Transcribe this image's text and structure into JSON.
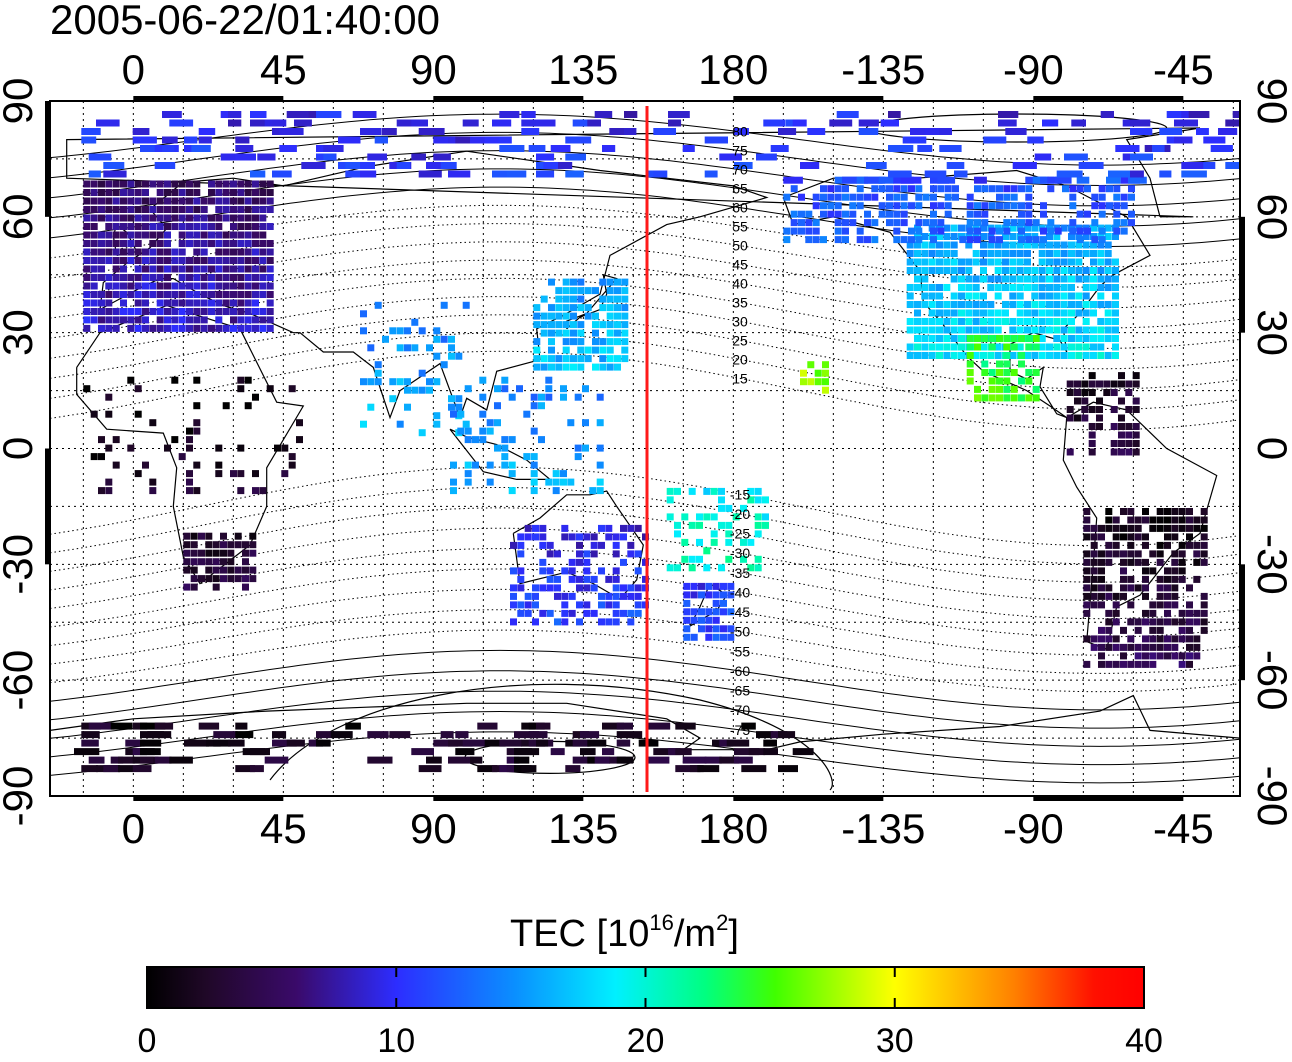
{
  "timestamp": "2005-06-22/01:40:00",
  "top_lon_labels": [
    "0",
    "45",
    "90",
    "135",
    "180",
    "-135",
    "-90",
    "-45"
  ],
  "bottom_lon_labels": [
    "0",
    "45",
    "90",
    "135",
    "180",
    "-135",
    "-90",
    "-45"
  ],
  "left_lat_labels": [
    "90",
    "60",
    "30",
    "0",
    "-30",
    "-60",
    "-90"
  ],
  "right_lat_labels": [
    "90",
    "60",
    "30",
    "0",
    "-30",
    "-60",
    "-90"
  ],
  "contour_labels": [
    "80",
    "75",
    "70",
    "65",
    "60",
    "55",
    "50",
    "45",
    "40",
    "35",
    "30",
    "25",
    "20",
    "15",
    "-15",
    "-20",
    "-25",
    "-30",
    "-35",
    "-40",
    "-45",
    "-50",
    "-55",
    "-60",
    "-65",
    "-70",
    "-75"
  ],
  "colorbar": {
    "title_prefix": "TEC  [10",
    "title_sup1": "16",
    "title_mid": "/m",
    "title_sup2": "2",
    "title_suffix": "]",
    "tick_labels": [
      "0",
      "10",
      "20",
      "30",
      "40"
    ],
    "min": 0,
    "max": 40
  },
  "colors": {
    "red_meridian": "#ff1a1a",
    "frame": "#000000"
  },
  "tec_regions": [
    {
      "name": "europe",
      "lon": [
        -15,
        40
      ],
      "lat": [
        32,
        70
      ],
      "value": 7,
      "density": 0.95
    },
    {
      "name": "north-america",
      "lon": [
        -128,
        -65
      ],
      "lat": [
        25,
        60
      ],
      "value": 17,
      "density": 0.9
    },
    {
      "name": "canada-alaska",
      "lon": [
        -165,
        -60
      ],
      "lat": [
        55,
        72
      ],
      "value": 12,
      "density": 0.6
    },
    {
      "name": "mexico",
      "lon": [
        -110,
        -90
      ],
      "lat": [
        14,
        30
      ],
      "value": 24,
      "density": 0.7
    },
    {
      "name": "japan",
      "lon": [
        120,
        148
      ],
      "lat": [
        22,
        45
      ],
      "value": 16,
      "density": 0.85
    },
    {
      "name": "africa-north",
      "lon": [
        -15,
        50
      ],
      "lat": [
        -10,
        20
      ],
      "value": 1.5,
      "density": 0.15
    },
    {
      "name": "africa-south",
      "lon": [
        15,
        35
      ],
      "lat": [
        -35,
        -20
      ],
      "value": 3,
      "density": 0.8
    },
    {
      "name": "south-america",
      "lon": [
        -75,
        -38
      ],
      "lat": [
        -55,
        -15
      ],
      "value": 3,
      "density": 0.7
    },
    {
      "name": "caribbean",
      "lon": [
        -80,
        -60
      ],
      "lat": [
        0,
        20
      ],
      "value": 3,
      "density": 0.6
    },
    {
      "name": "australia",
      "lon": [
        113,
        153
      ],
      "lat": [
        -44,
        -18
      ],
      "value": 10,
      "density": 0.5
    },
    {
      "name": "new-zealand",
      "lon": [
        165,
        180
      ],
      "lat": [
        -48,
        -34
      ],
      "value": 11,
      "density": 0.85
    },
    {
      "name": "pacific-islands",
      "lon": [
        160,
        190
      ],
      "lat": [
        -30,
        -10
      ],
      "value": 20,
      "density": 0.4
    },
    {
      "name": "hawaii",
      "lon": [
        -160,
        -152
      ],
      "lat": [
        16,
        24
      ],
      "value": 27,
      "density": 0.8
    },
    {
      "name": "south-asia",
      "lon": [
        68,
        100
      ],
      "lat": [
        5,
        40
      ],
      "value": 15,
      "density": 0.25
    },
    {
      "name": "southeast-asia",
      "lon": [
        95,
        140
      ],
      "lat": [
        -10,
        20
      ],
      "value": 15,
      "density": 0.25
    },
    {
      "name": "antarctica",
      "lon": [
        -20,
        200
      ],
      "lat": [
        -82,
        -70
      ],
      "value": 2,
      "density": 0.2
    },
    {
      "name": "arctic",
      "lon": [
        -20,
        340
      ],
      "lat": [
        72,
        88
      ],
      "value": 10,
      "density": 0.15
    }
  ]
}
